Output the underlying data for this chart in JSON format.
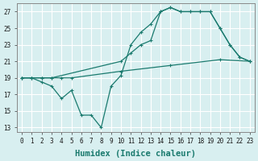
{
  "line1": {
    "x": [
      0,
      1,
      2,
      3,
      4,
      5,
      10,
      15,
      20,
      23
    ],
    "y": [
      19,
      19,
      19,
      19,
      19,
      19,
      19.8,
      20.5,
      21.2,
      21
    ]
  },
  "line2": {
    "x": [
      0,
      1,
      2,
      3,
      10,
      11,
      12,
      13,
      14,
      15,
      16,
      17,
      18,
      19,
      20,
      21,
      22,
      23
    ],
    "y": [
      19,
      19,
      19,
      19,
      21,
      22,
      23,
      23.5,
      27,
      27.5,
      27,
      27,
      27,
      27,
      25,
      23,
      21.5,
      21
    ]
  },
  "line3": {
    "x": [
      0,
      1,
      2,
      3,
      4,
      5,
      6,
      7,
      8,
      9,
      10,
      11,
      12,
      13,
      14,
      15,
      16,
      17,
      18,
      19,
      20,
      21,
      22,
      23
    ],
    "y": [
      19,
      19,
      18.5,
      18,
      16.5,
      17.5,
      14.5,
      14.5,
      13,
      18,
      19.3,
      23,
      24.5,
      25.5,
      27,
      27.5,
      27,
      27,
      27,
      27,
      25,
      23,
      21.5,
      21
    ]
  },
  "xlim": [
    -0.5,
    23.5
  ],
  "ylim": [
    12.5,
    28
  ],
  "yticks": [
    13,
    15,
    17,
    19,
    21,
    23,
    25,
    27
  ],
  "xticks": [
    0,
    1,
    2,
    3,
    4,
    5,
    6,
    7,
    8,
    9,
    10,
    11,
    12,
    13,
    14,
    15,
    16,
    17,
    18,
    19,
    20,
    21,
    22,
    23
  ],
  "xlabel": "Humidex (Indice chaleur)",
  "bg_color": "#d8eff0",
  "grid_color": "#ffffff",
  "line_color": "#1a7a6e",
  "tick_fontsize": 5.5,
  "xlabel_fontsize": 7.5
}
